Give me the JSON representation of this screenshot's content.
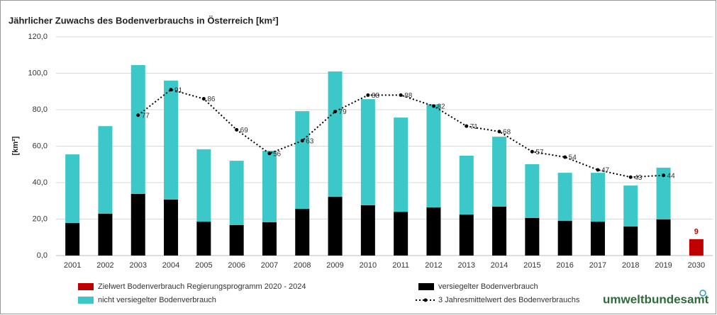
{
  "chart_data": {
    "type": "bar",
    "stacked": true,
    "title": "Jährlicher Zuwachs des Bodenverbrauchs in Österreich [km²]",
    "y_label": "[km²]",
    "logo": "umweltbundesamt",
    "categories": [
      "2001",
      "2002",
      "2003",
      "2004",
      "2005",
      "2006",
      "2007",
      "2008",
      "2009",
      "2010",
      "2011",
      "2012",
      "2013",
      "2014",
      "2015",
      "2016",
      "2017",
      "2018",
      "2019",
      "2030"
    ],
    "ylim": [
      0,
      120
    ],
    "yticks": [
      {
        "value": 0,
        "label": "0,0"
      },
      {
        "value": 20,
        "label": "20,0"
      },
      {
        "value": 40,
        "label": "40,0"
      },
      {
        "value": 60,
        "label": "60,0"
      },
      {
        "value": 80,
        "label": "80,0"
      },
      {
        "value": 100,
        "label": "100,0"
      },
      {
        "value": 120,
        "label": "120,0"
      }
    ],
    "grid": true,
    "series": [
      {
        "name": "Zielwert Bodenverbrauch Regierungsprogramm 2020 - 2024",
        "color": "#c00000",
        "kind": "bar",
        "labels": true,
        "values": [
          null,
          null,
          null,
          null,
          null,
          null,
          null,
          null,
          null,
          null,
          null,
          null,
          null,
          null,
          null,
          null,
          null,
          null,
          null,
          9
        ]
      },
      {
        "name": "versiegelter Bodenverbrauch",
        "color": "#000000",
        "kind": "bar",
        "values": [
          17.9,
          23,
          33.8,
          30.7,
          18.6,
          16.7,
          18.3,
          25.6,
          32.2,
          27.6,
          24,
          26.4,
          22.5,
          26.8,
          20.6,
          19,
          18.6,
          15.9,
          19.8,
          null
        ]
      },
      {
        "name": "nicht versiegelter Bodenverbrauch",
        "color": "#3cc8c8",
        "kind": "bar",
        "values": [
          37.6,
          48,
          70.7,
          65.3,
          39.7,
          35.3,
          39.2,
          53.6,
          68.8,
          58.2,
          51.7,
          56.6,
          32.3,
          38.4,
          29.5,
          26.4,
          26.8,
          22.5,
          28.4,
          null
        ]
      },
      {
        "name": "3 Jahresmittelwert des Bodenverbrauchs",
        "color": "#000000",
        "kind": "line",
        "dotted": true,
        "labels": true,
        "values": [
          null,
          null,
          77,
          91,
          86,
          69,
          56,
          63,
          79,
          88,
          88,
          82,
          71,
          68,
          57,
          54,
          47,
          43,
          44,
          null
        ]
      }
    ]
  }
}
